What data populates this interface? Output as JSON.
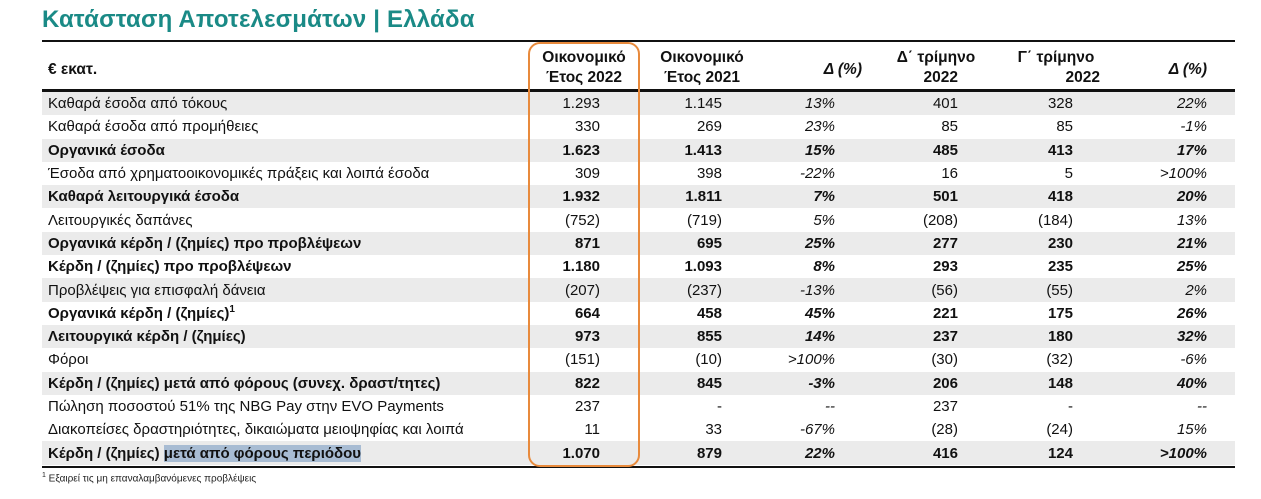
{
  "title": "Κατάσταση Αποτελεσμάτων | Ελλάδα",
  "header": {
    "unit": "€ εκατ.",
    "col1": [
      "Οικονομικό",
      "Έτος 2022"
    ],
    "col2": [
      "Οικονομικό",
      "Έτος 2021"
    ],
    "col3": "Δ (%)",
    "col4": [
      "Δ΄ τρίμηνο",
      "2022"
    ],
    "col5": [
      "Γ΄ τρίμηνο",
      "2022"
    ],
    "col6": "Δ (%)"
  },
  "rows": [
    {
      "label": "Καθαρά έσοδα από τόκους",
      "v": [
        "1.293",
        "1.145",
        "13%",
        "401",
        "328",
        "22%"
      ]
    },
    {
      "label": "Καθαρά έσοδα από προμήθειες",
      "v": [
        "330",
        "269",
        "23%",
        "85",
        "85",
        "-1%"
      ]
    },
    {
      "label": "Οργανικά έσοδα",
      "v": [
        "1.623",
        "1.413",
        "15%",
        "485",
        "413",
        "17%"
      ]
    },
    {
      "label": "Έσοδα από χρηματοοικονομικές πράξεις και λοιπά έσοδα",
      "v": [
        "309",
        "398",
        "-22%",
        "16",
        "5",
        ">100%"
      ]
    },
    {
      "label": "Καθαρά λειτουργικά έσοδα",
      "v": [
        "1.932",
        "1.811",
        "7%",
        "501",
        "418",
        "20%"
      ]
    },
    {
      "label": "Λειτουργικές δαπάνες",
      "v": [
        "(752)",
        "(719)",
        "5%",
        "(208)",
        "(184)",
        "13%"
      ]
    },
    {
      "label": "Οργανικά κέρδη / (ζημίες) προ προβλέψεων",
      "v": [
        "871",
        "695",
        "25%",
        "277",
        "230",
        "21%"
      ]
    },
    {
      "label": "Κέρδη / (ζημίες) προ προβλέψεων",
      "v": [
        "1.180",
        "1.093",
        "8%",
        "293",
        "235",
        "25%"
      ]
    },
    {
      "label": "Προβλέψεις για επισφαλή δάνεια",
      "v": [
        "(207)",
        "(237)",
        "-13%",
        "(56)",
        "(55)",
        "2%"
      ]
    },
    {
      "label": "Οργανικά κέρδη / (ζημίες)",
      "sup": "1",
      "v": [
        "664",
        "458",
        "45%",
        "221",
        "175",
        "26%"
      ]
    },
    {
      "label": "Λειτουργικά κέρδη / (ζημίες)",
      "v": [
        "973",
        "855",
        "14%",
        "237",
        "180",
        "32%"
      ]
    },
    {
      "label": "Φόροι",
      "v": [
        "(151)",
        "(10)",
        ">100%",
        "(30)",
        "(32)",
        "-6%"
      ]
    },
    {
      "label": "Κέρδη / (ζημίες) μετά από φόρους (συνεχ. δραστ/τητες)",
      "v": [
        "822",
        "845",
        "-3%",
        "206",
        "148",
        "40%"
      ]
    },
    {
      "label": "Πώληση ποσοστού 51% της NBG Pay στην EVO Payments",
      "v": [
        "237",
        "-",
        "--",
        "237",
        "-",
        "--"
      ]
    },
    {
      "label": "Διακοπείσες δραστηριότητες, δικαιώματα μειοψηφίας και λοιπά",
      "v": [
        "11",
        "33",
        "-67%",
        "(28)",
        "(24)",
        "15%"
      ]
    },
    {
      "label_parts": [
        "Κέρδη / (ζημίες) ",
        "μετά",
        " ",
        "από φόρους",
        " ",
        "περιόδου"
      ],
      "v": [
        "1.070",
        "879",
        "22%",
        "416",
        "124",
        ">100%"
      ]
    }
  ],
  "footnote": {
    "mark": "1",
    "text": " Εξαιρεί τις μη επαναλαμβανόμενες προβλέψεις"
  }
}
